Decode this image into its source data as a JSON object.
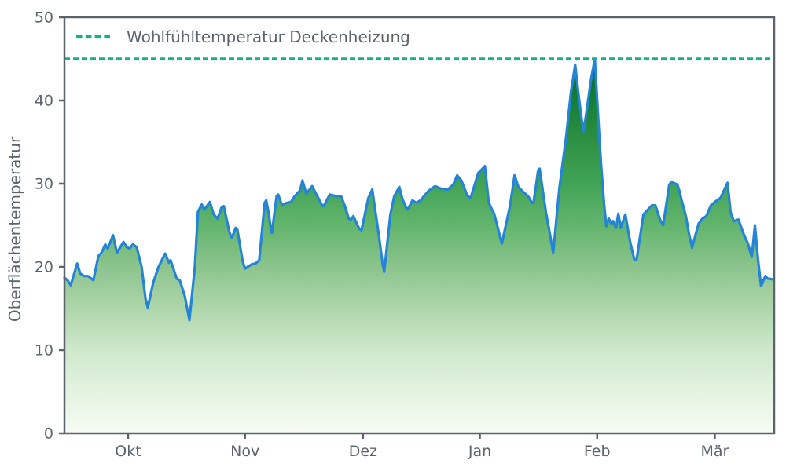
{
  "chart_data": {
    "type": "area",
    "title": "",
    "ylabel": "Oberflächentemperatur",
    "xlabel": "",
    "ylim": [
      0,
      50
    ],
    "xlim_days": [
      0,
      184
    ],
    "grid": false,
    "legend_position": "upper-left",
    "y_axis_ticks": [
      0,
      10,
      20,
      30,
      40,
      50
    ],
    "x_axis_ticks": [
      {
        "label": "Okt",
        "day": 16.5
      },
      {
        "label": "Nov",
        "day": 46.8
      },
      {
        "label": "Dez",
        "day": 77.4
      },
      {
        "label": "Jan",
        "day": 107.7
      },
      {
        "label": "Feb",
        "day": 138.1
      },
      {
        "label": "Mär",
        "day": 168.6
      }
    ],
    "comfort_line": {
      "label": "Wohlfühltemperatur Deckenheizung",
      "value": 45,
      "style": "dashed",
      "color": "#0fb385"
    },
    "colors": {
      "line": "#2484d8",
      "dashed_reference": "#0fb385",
      "axis_text": "#5b646e",
      "frame": "#5b646e",
      "fill_gradient_top": "#04652a",
      "fill_gradient_bottom": "#f7fcf5"
    },
    "gradient_stops": [
      {
        "offset": 0.0,
        "color": "#00441b"
      },
      {
        "offset": 0.1,
        "color": "#04652a"
      },
      {
        "offset": 0.2,
        "color": "#157f33"
      },
      {
        "offset": 0.3,
        "color": "#2e9144"
      },
      {
        "offset": 0.4,
        "color": "#41a355"
      },
      {
        "offset": 0.5,
        "color": "#62b56d"
      },
      {
        "offset": 0.6,
        "color": "#8cc48d"
      },
      {
        "offset": 0.7,
        "color": "#aed6aa"
      },
      {
        "offset": 0.8,
        "color": "#cfe8cc"
      },
      {
        "offset": 0.9,
        "color": "#e4f3e0"
      },
      {
        "offset": 1.0,
        "color": "#f7fcf5"
      }
    ],
    "series": [
      {
        "name": "Oberflächentemperatur",
        "x_unit": "days from start (mid-September to mid-March)",
        "points": [
          [
            0,
            18.7
          ],
          [
            0.8,
            18.4
          ],
          [
            1.6,
            17.8
          ],
          [
            2.4,
            19.0
          ],
          [
            3.3,
            20.4
          ],
          [
            4.1,
            19.2
          ],
          [
            5.1,
            18.9
          ],
          [
            6.1,
            18.9
          ],
          [
            7.5,
            18.4
          ],
          [
            8.8,
            21.3
          ],
          [
            9.6,
            21.7
          ],
          [
            10.6,
            22.7
          ],
          [
            11.2,
            22.2
          ],
          [
            12.6,
            23.8
          ],
          [
            13.6,
            21.7
          ],
          [
            15.3,
            23.0
          ],
          [
            16.1,
            22.4
          ],
          [
            16.9,
            22.2
          ],
          [
            17.7,
            22.7
          ],
          [
            18.7,
            22.4
          ],
          [
            20,
            20.0
          ],
          [
            21,
            16.2
          ],
          [
            21.6,
            15.1
          ],
          [
            23,
            18.1
          ],
          [
            24.4,
            20.0
          ],
          [
            26.1,
            21.6
          ],
          [
            27.1,
            20.5
          ],
          [
            27.5,
            20.8
          ],
          [
            29.1,
            18.6
          ],
          [
            29.9,
            18.4
          ],
          [
            31.2,
            16.5
          ],
          [
            32.4,
            13.6
          ],
          [
            33.8,
            20.0
          ],
          [
            34.6,
            26.6
          ],
          [
            35.6,
            27.5
          ],
          [
            36.3,
            26.9
          ],
          [
            37.7,
            27.8
          ],
          [
            38.7,
            26.3
          ],
          [
            39.7,
            25.8
          ],
          [
            40.7,
            27.1
          ],
          [
            41.3,
            27.3
          ],
          [
            42.8,
            24.1
          ],
          [
            43.4,
            23.5
          ],
          [
            44.4,
            24.7
          ],
          [
            44.8,
            24.5
          ],
          [
            46.2,
            20.7
          ],
          [
            46.8,
            19.8
          ],
          [
            48.5,
            20.3
          ],
          [
            49.5,
            20.4
          ],
          [
            50.5,
            20.8
          ],
          [
            51.9,
            27.7
          ],
          [
            52.3,
            28.0
          ],
          [
            53,
            26.3
          ],
          [
            53.6,
            24.2
          ],
          [
            53.8,
            24.1
          ],
          [
            55,
            28.5
          ],
          [
            55.4,
            28.7
          ],
          [
            56.4,
            27.4
          ],
          [
            57.6,
            27.7
          ],
          [
            58.7,
            27.8
          ],
          [
            59.7,
            28.5
          ],
          [
            61.1,
            29.2
          ],
          [
            61.7,
            30.4
          ],
          [
            62.7,
            28.8
          ],
          [
            64.2,
            29.7
          ],
          [
            65.2,
            28.8
          ],
          [
            66.8,
            27.4
          ],
          [
            67.2,
            27.3
          ],
          [
            68.8,
            28.7
          ],
          [
            70.5,
            28.5
          ],
          [
            71.7,
            28.5
          ],
          [
            72.7,
            27.3
          ],
          [
            73.7,
            25.8
          ],
          [
            74.3,
            25.7
          ],
          [
            74.9,
            26.1
          ],
          [
            76.4,
            24.6
          ],
          [
            77,
            24.4
          ],
          [
            78.8,
            28.3
          ],
          [
            79.8,
            29.3
          ],
          [
            81.5,
            23.8
          ],
          [
            82.5,
            20.3
          ],
          [
            82.9,
            19.4
          ],
          [
            84.5,
            26.3
          ],
          [
            85.5,
            28.5
          ],
          [
            86.8,
            29.6
          ],
          [
            87.6,
            28.2
          ],
          [
            88.6,
            27.1
          ],
          [
            89,
            26.9
          ],
          [
            90.2,
            28.0
          ],
          [
            91.2,
            27.7
          ],
          [
            92.3,
            28.0
          ],
          [
            94.3,
            29.1
          ],
          [
            96.1,
            29.7
          ],
          [
            97.6,
            29.4
          ],
          [
            99.4,
            29.3
          ],
          [
            100.8,
            29.9
          ],
          [
            101.8,
            31.0
          ],
          [
            102.9,
            30.4
          ],
          [
            104.5,
            28.5
          ],
          [
            105.3,
            28.3
          ],
          [
            107.3,
            31.3
          ],
          [
            109,
            32.1
          ],
          [
            110,
            27.8
          ],
          [
            110.4,
            27.3
          ],
          [
            111.4,
            26.4
          ],
          [
            113.4,
            22.8
          ],
          [
            115.5,
            27.3
          ],
          [
            116.7,
            31.0
          ],
          [
            117.7,
            29.6
          ],
          [
            118.7,
            29.1
          ],
          [
            120.2,
            28.5
          ],
          [
            121.2,
            27.7
          ],
          [
            121.6,
            27.7
          ],
          [
            122.8,
            31.6
          ],
          [
            123.2,
            31.8
          ],
          [
            124.8,
            26.6
          ],
          [
            125.9,
            23.8
          ],
          [
            126.7,
            21.7
          ],
          [
            128.3,
            29.4
          ],
          [
            130.1,
            35.8
          ],
          [
            131.3,
            41.0
          ],
          [
            132.4,
            44.3
          ],
          [
            133.2,
            41.0
          ],
          [
            134,
            38.0
          ],
          [
            134.6,
            36.3
          ],
          [
            135.6,
            39.5
          ],
          [
            136.5,
            42.5
          ],
          [
            137.5,
            45.0
          ],
          [
            138.3,
            38.5
          ],
          [
            139.1,
            32.5
          ],
          [
            139.9,
            27.5
          ],
          [
            140.5,
            24.9
          ],
          [
            141.1,
            25.8
          ],
          [
            141.8,
            25.2
          ],
          [
            142.2,
            25.5
          ],
          [
            143,
            24.7
          ],
          [
            143.6,
            26.4
          ],
          [
            144.2,
            24.7
          ],
          [
            145.4,
            26.3
          ],
          [
            146.6,
            23.1
          ],
          [
            147.7,
            20.9
          ],
          [
            148.3,
            20.8
          ],
          [
            150.1,
            26.3
          ],
          [
            151.1,
            26.8
          ],
          [
            152.3,
            27.4
          ],
          [
            153.2,
            27.4
          ],
          [
            154.4,
            25.7
          ],
          [
            155.2,
            25.0
          ],
          [
            156.8,
            29.9
          ],
          [
            157.4,
            30.2
          ],
          [
            158.9,
            29.9
          ],
          [
            159.5,
            29.0
          ],
          [
            159.9,
            28.2
          ],
          [
            161.1,
            26.1
          ],
          [
            161.9,
            24.0
          ],
          [
            162.7,
            22.3
          ],
          [
            164.4,
            25.2
          ],
          [
            165.4,
            25.8
          ],
          [
            166.4,
            26.1
          ],
          [
            167.6,
            27.4
          ],
          [
            168.6,
            27.8
          ],
          [
            170.1,
            28.3
          ],
          [
            171.9,
            30.1
          ],
          [
            172.7,
            26.6
          ],
          [
            173.5,
            25.5
          ],
          [
            174.7,
            25.7
          ],
          [
            176.2,
            23.8
          ],
          [
            177.2,
            22.8
          ],
          [
            178.2,
            21.2
          ],
          [
            179,
            25.0
          ],
          [
            179.8,
            20.9
          ],
          [
            180.6,
            17.7
          ],
          [
            181.7,
            18.9
          ],
          [
            182.3,
            18.6
          ],
          [
            183.7,
            18.5
          ]
        ]
      }
    ]
  }
}
